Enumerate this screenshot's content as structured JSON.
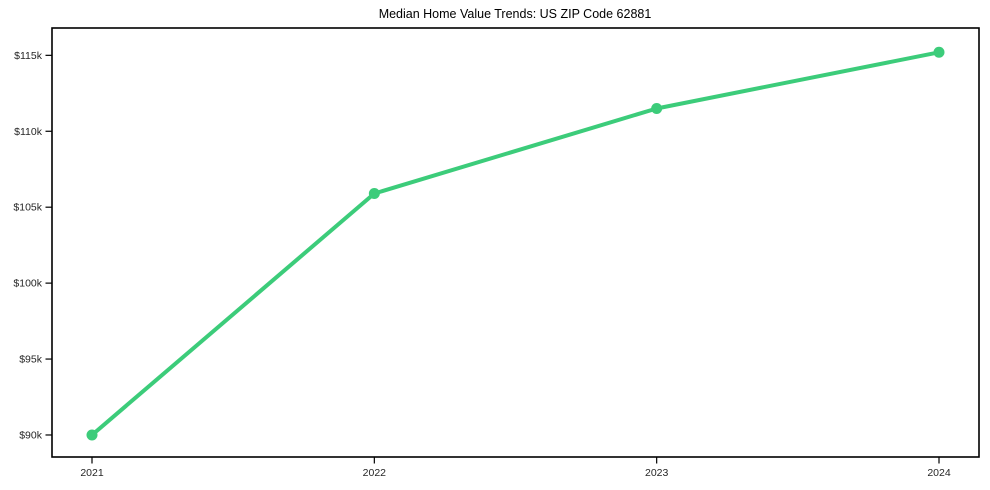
{
  "chart_data": {
    "type": "line",
    "title": "Median Home Value Trends: US ZIP Code 62881",
    "x": [
      "2021",
      "2022",
      "2023",
      "2024"
    ],
    "values": [
      90000,
      105900,
      111500,
      115200
    ],
    "series": [
      {
        "name": "Median Home Value",
        "values": [
          90000,
          105900,
          111500,
          115200
        ]
      }
    ],
    "xlabel": "",
    "ylabel": "",
    "y_ticks": [
      90000,
      95000,
      100000,
      105000,
      110000,
      115000
    ],
    "y_tick_labels": [
      "$90k",
      "$95k",
      "$100k",
      "$105k",
      "$110k",
      "$115k"
    ],
    "ylim": [
      88550,
      116800
    ],
    "grid": false,
    "legend_position": "none",
    "marker": "circle",
    "colors": {
      "line": "#3ccc7a",
      "marker": "#3ccc7a",
      "axis": "#000000",
      "tick_text": "#262626",
      "background": "#ffffff"
    }
  }
}
